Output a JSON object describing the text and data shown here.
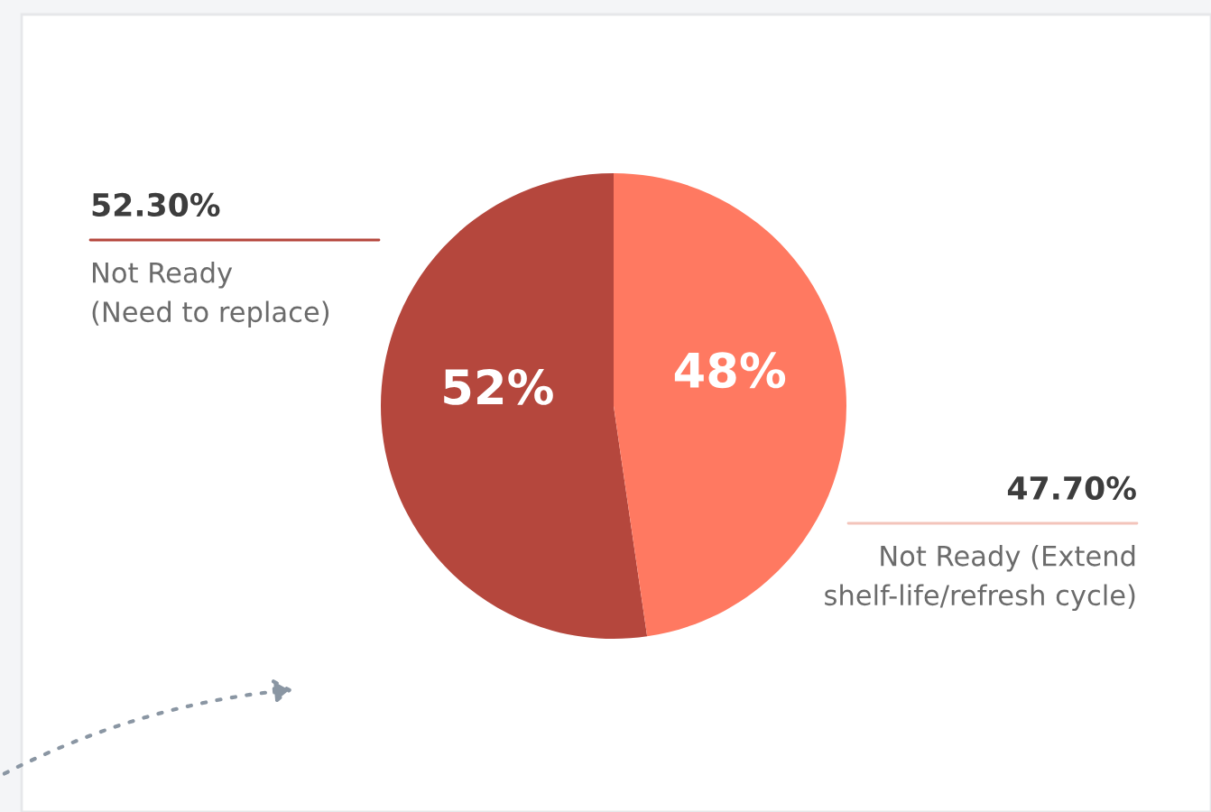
{
  "chart_data": {
    "type": "pie",
    "categories": [
      "Not Ready\n(Need to replace)",
      "Not Ready (Extend\nshelf-life/refresh cycle)"
    ],
    "values": [
      52.3,
      47.7
    ],
    "colors": [
      "#b5473d",
      "#ff7961"
    ],
    "value_labels": [
      "52%",
      "48%"
    ],
    "annotations": [
      "52.30%",
      "47.70%"
    ],
    "legend": false
  }
}
